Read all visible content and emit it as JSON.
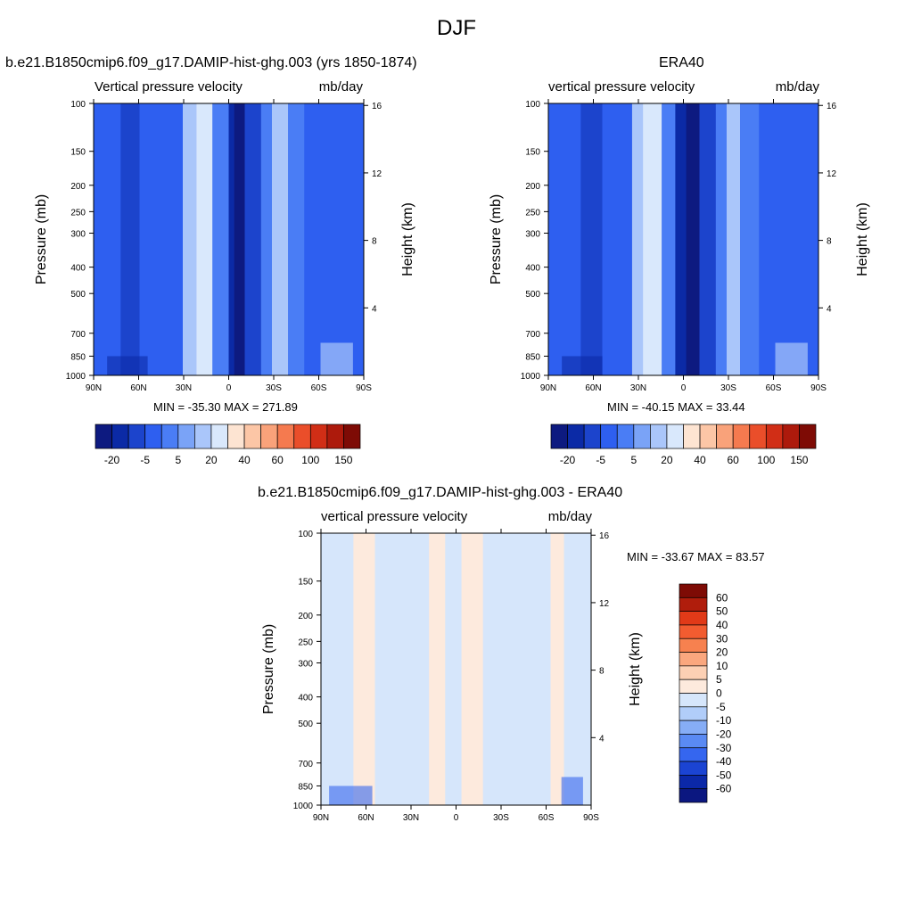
{
  "main_title": "DJF",
  "chart_data": [
    {
      "type": "heatmap",
      "id": "model",
      "title": "b.e21.B1850cmip6.f09_g17.DAMIP-hist-ghg.003 (yrs 1850-1874)",
      "left_subtitle": "Vertical pressure velocity",
      "right_subtitle": "mb/day",
      "ylabel": "Pressure (mb)",
      "y2label": "Height (km)",
      "x_ticks": [
        "90N",
        "60N",
        "30N",
        "0",
        "30S",
        "60S",
        "90S"
      ],
      "y_ticks": [
        "100",
        "150",
        "200",
        "250",
        "300",
        "400",
        "500",
        "700",
        "850",
        "1000"
      ],
      "y_tick_values": [
        100,
        150,
        200,
        250,
        300,
        400,
        500,
        700,
        850,
        1000
      ],
      "y2_ticks": [
        "16",
        "12",
        "8",
        "4"
      ],
      "y2_tick_values": [
        16,
        12,
        8,
        4
      ],
      "ylim": [
        1000,
        100
      ],
      "xlim": [
        90,
        -90
      ],
      "min_max_label": "MIN = -35.30  MAX = 271.89",
      "colorbar": {
        "orientation": "horizontal",
        "labels": [
          "-20",
          "-5",
          "5",
          "20",
          "40",
          "60",
          "100",
          "150"
        ],
        "colors": [
          "#0d1a80",
          "#0b2aa6",
          "#1c44cc",
          "#2e5ff0",
          "#4a7df5",
          "#7aa3f7",
          "#aac6fa",
          "#d9e8fc",
          "#fde4d2",
          "#fcc6a6",
          "#f9a27a",
          "#f57a4f",
          "#ea4e2a",
          "#d12e16",
          "#ad1a0c",
          "#7e0b05"
        ]
      }
    },
    {
      "type": "heatmap",
      "id": "obs",
      "title": "ERA40",
      "left_subtitle": "vertical pressure velocity",
      "right_subtitle": "mb/day",
      "ylabel": "Pressure (mb)",
      "y2label": "Height (km)",
      "x_ticks": [
        "90N",
        "60N",
        "30N",
        "0",
        "30S",
        "60S",
        "90S"
      ],
      "y_ticks": [
        "100",
        "150",
        "200",
        "250",
        "300",
        "400",
        "500",
        "700",
        "850",
        "1000"
      ],
      "y_tick_values": [
        100,
        150,
        200,
        250,
        300,
        400,
        500,
        700,
        850,
        1000
      ],
      "y2_ticks": [
        "16",
        "12",
        "8",
        "4"
      ],
      "y2_tick_values": [
        16,
        12,
        8,
        4
      ],
      "ylim": [
        1000,
        100
      ],
      "xlim": [
        90,
        -90
      ],
      "min_max_label": "MIN = -40.15  MAX =  33.44",
      "colorbar": {
        "orientation": "horizontal",
        "labels": [
          "-20",
          "-5",
          "5",
          "20",
          "40",
          "60",
          "100",
          "150"
        ],
        "colors": [
          "#0d1a80",
          "#0b2aa6",
          "#1c44cc",
          "#2e5ff0",
          "#4a7df5",
          "#7aa3f7",
          "#aac6fa",
          "#d9e8fc",
          "#fde4d2",
          "#fcc6a6",
          "#f9a27a",
          "#f57a4f",
          "#ea4e2a",
          "#d12e16",
          "#ad1a0c",
          "#7e0b05"
        ]
      }
    },
    {
      "type": "heatmap",
      "id": "diff",
      "title": "b.e21.B1850cmip6.f09_g17.DAMIP-hist-ghg.003 - ERA40",
      "left_subtitle": "vertical pressure velocity",
      "right_subtitle": "mb/day",
      "ylabel": "Pressure (mb)",
      "y2label": "Height (km)",
      "x_ticks": [
        "90N",
        "60N",
        "30N",
        "0",
        "30S",
        "60S",
        "90S"
      ],
      "y_ticks": [
        "100",
        "150",
        "200",
        "250",
        "300",
        "400",
        "500",
        "700",
        "850",
        "1000"
      ],
      "y_tick_values": [
        100,
        150,
        200,
        250,
        300,
        400,
        500,
        700,
        850,
        1000
      ],
      "y2_ticks": [
        "16",
        "12",
        "8",
        "4"
      ],
      "y2_tick_values": [
        16,
        12,
        8,
        4
      ],
      "ylim": [
        1000,
        100
      ],
      "xlim": [
        90,
        -90
      ],
      "min_max_label": "MIN = -33.67  MAX =  83.57",
      "colorbar": {
        "orientation": "vertical",
        "labels": [
          "60",
          "50",
          "40",
          "30",
          "20",
          "10",
          "5",
          "0",
          "-5",
          "-10",
          "-20",
          "-30",
          "-40",
          "-50",
          "-60"
        ],
        "colors": [
          "#7e0b05",
          "#b01d0c",
          "#e13a18",
          "#f25c30",
          "#f7814f",
          "#faa77e",
          "#fcd0b4",
          "#fdeadd",
          "#d6e6fb",
          "#b1cdf9",
          "#86adf6",
          "#5a8af3",
          "#3566ef",
          "#1b44d3",
          "#0b28a8",
          "#0b1780"
        ]
      }
    }
  ]
}
